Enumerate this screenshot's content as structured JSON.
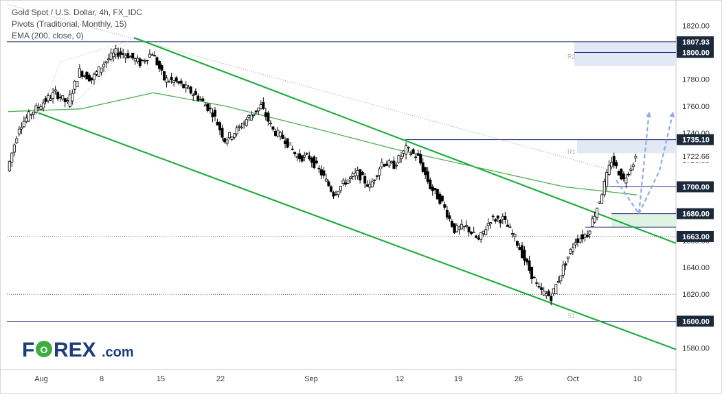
{
  "header": {
    "title": "Gold Spot / U.S. Dollar, 4h, FX_IDC",
    "indicator_pivots": "Pivots (Traditional, Monthly, 15)",
    "indicator_ema": "EMA (200, close, 0)"
  },
  "logo": {
    "text_left": "F",
    "text_o": "O",
    "text_right": "REX",
    "suffix": ".com"
  },
  "colors": {
    "candle": "#000000",
    "channel": "#1fae3f",
    "ema": "#4caf50",
    "level_line": "#1b2a7a",
    "projection": "#8fa8ee",
    "zone_blue": "#e3e8f5",
    "zone_green": "#dff3e2",
    "label_bg": "#1b2a3a",
    "label_text": "#ffffff",
    "logo_blue": "#1c3c7a",
    "logo_green": "#3fae3f"
  },
  "chart_data": {
    "type": "candlestick",
    "title": "Gold Spot / U.S. Dollar, 4h, FX_IDC",
    "y_axis": {
      "ylim": [
        1564,
        1838
      ],
      "ticks": [
        1580,
        1600,
        1620,
        1640,
        1660,
        1680,
        1700,
        1720,
        1740,
        1760,
        1780,
        1800,
        1820
      ]
    },
    "x_axis": {
      "tick_labels": [
        "Aug",
        "8",
        "15",
        "22",
        "Sep",
        "12",
        "19",
        "26",
        "Oct",
        "10"
      ]
    },
    "price_labels": [
      {
        "value": 1807.93,
        "style": "dark"
      },
      {
        "value": 1800.0,
        "style": "dark"
      },
      {
        "value": 1735.1,
        "style": "dark"
      },
      {
        "value": 1722.66,
        "style": "plain"
      },
      {
        "value": 1700.0,
        "style": "dark"
      },
      {
        "value": 1680.0,
        "style": "dark"
      },
      {
        "value": 1663.0,
        "style": "dark"
      },
      {
        "value": 1600.0,
        "style": "dark"
      }
    ],
    "horizontal_levels": [
      1807.93,
      1800.0,
      1735.1,
      1700.0,
      1680.0,
      1663.0,
      1600.0,
      1620.0
    ],
    "pivot_labels": [
      "R2",
      "R1",
      "S1"
    ],
    "zones": [
      {
        "from": 1790,
        "to": 1808,
        "color": "blue"
      },
      {
        "from": 1725,
        "to": 1735.1,
        "color": "blue"
      },
      {
        "from": 1670,
        "to": 1680,
        "color": "green"
      }
    ],
    "channel": {
      "upper_start": [
        10,
        1811
      ],
      "upper_end": [
        54,
        1658
      ],
      "lower_start": [
        0,
        1755
      ],
      "lower_end": [
        54,
        1579
      ]
    },
    "price_path": [
      [
        0,
        1712
      ],
      [
        1,
        1745
      ],
      [
        2,
        1755
      ],
      [
        3,
        1763
      ],
      [
        4,
        1770
      ],
      [
        5,
        1762
      ],
      [
        6,
        1786
      ],
      [
        7,
        1780
      ],
      [
        8,
        1792
      ],
      [
        9,
        1800
      ],
      [
        10,
        1798
      ],
      [
        11,
        1792
      ],
      [
        12,
        1800
      ],
      [
        13,
        1780
      ],
      [
        14,
        1778
      ],
      [
        15,
        1772
      ],
      [
        16,
        1765
      ],
      [
        17,
        1755
      ],
      [
        18,
        1735
      ],
      [
        19,
        1742
      ],
      [
        20,
        1752
      ],
      [
        21,
        1760
      ],
      [
        22,
        1742
      ],
      [
        23,
        1735
      ],
      [
        24,
        1722
      ],
      [
        25,
        1722
      ],
      [
        26,
        1710
      ],
      [
        27,
        1695
      ],
      [
        28,
        1704
      ],
      [
        29,
        1710
      ],
      [
        30,
        1700
      ],
      [
        31,
        1718
      ],
      [
        32,
        1716
      ],
      [
        33,
        1728
      ],
      [
        34,
        1722
      ],
      [
        35,
        1700
      ],
      [
        36,
        1688
      ],
      [
        37,
        1668
      ],
      [
        38,
        1670
      ],
      [
        39,
        1660
      ],
      [
        40,
        1676
      ],
      [
        41,
        1676
      ],
      [
        42,
        1662
      ],
      [
        43,
        1642
      ],
      [
        44,
        1623
      ],
      [
        45,
        1618
      ],
      [
        46,
        1640
      ],
      [
        47,
        1660
      ],
      [
        48,
        1665
      ],
      [
        49,
        1690
      ],
      [
        50,
        1720
      ],
      [
        51,
        1705
      ],
      [
        52,
        1722
      ]
    ],
    "ema_path": [
      [
        0,
        1756
      ],
      [
        6,
        1758
      ],
      [
        12,
        1770
      ],
      [
        18,
        1760
      ],
      [
        26,
        1742
      ],
      [
        32,
        1728
      ],
      [
        40,
        1712
      ],
      [
        46,
        1700
      ],
      [
        52,
        1694
      ]
    ],
    "projections": [
      {
        "points": [
          [
            52,
            1705
          ],
          [
            54.5,
            1680
          ],
          [
            57,
            1756
          ]
        ]
      },
      {
        "points": [
          [
            54.5,
            1680
          ],
          [
            59,
            1709
          ],
          [
            61,
            1754
          ]
        ]
      }
    ]
  }
}
